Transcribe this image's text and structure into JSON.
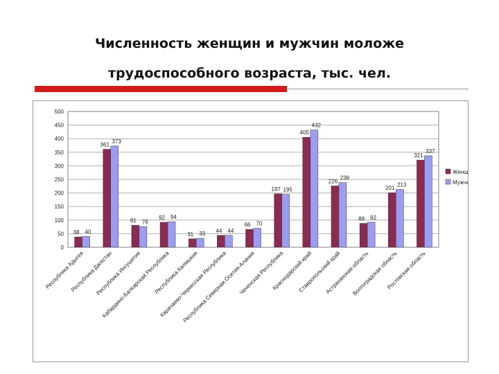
{
  "slide": {
    "title_line1": "Численность женщин и мужчин моложе",
    "title_line2": "трудоспособного возраста, тыс. чел."
  },
  "colors": {
    "accent_bar": "#d11b1b",
    "women": "#8b2a52",
    "men": "#9c9cf2"
  },
  "chart_data": {
    "type": "bar",
    "title": "",
    "xlabel": "",
    "ylabel": "",
    "ylim": [
      0,
      500
    ],
    "yticks": [
      0,
      50,
      100,
      150,
      200,
      250,
      300,
      350,
      400,
      450,
      500
    ],
    "grid": true,
    "legend_position": "right",
    "categories": [
      "Республика Адыгея",
      "Республика Дагестан",
      "Республика Ингушетия",
      "Кабардино-Балкарская Республика",
      "Республика Калмыкия",
      "Карачаево-Черкесская Республика",
      "Республика Северная Осетия-Алания",
      "Чеченская Республика",
      "Краснодарский край",
      "Ставропольский край",
      "Астраханская область",
      "Волгоградская область",
      "Ростовская область"
    ],
    "series": [
      {
        "name": "Женщины",
        "values": [
          38,
          361,
          81,
          92,
          31,
          44,
          66,
          197,
          405,
          226,
          88,
          201,
          321
        ]
      },
      {
        "name": "Мужчины",
        "values": [
          40,
          373,
          76,
          94,
          33,
          44,
          70,
          195,
          432,
          238,
          92,
          213,
          337
        ]
      }
    ]
  }
}
